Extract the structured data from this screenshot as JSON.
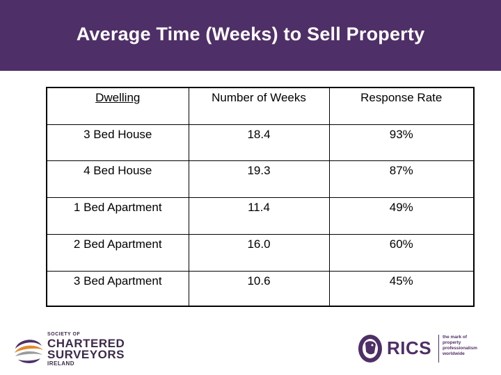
{
  "title": "Average Time (Weeks) to Sell Property",
  "table": {
    "headers": [
      "Dwelling",
      "Number of Weeks",
      "Response Rate"
    ],
    "rows": [
      [
        "3 Bed House",
        "18.4",
        "93%"
      ],
      [
        "4 Bed House",
        "19.3",
        "87%"
      ],
      [
        "1 Bed Apartment",
        "11.4",
        "49%"
      ],
      [
        "2 Bed Apartment",
        "16.0",
        "60%"
      ],
      [
        "3 Bed Apartment",
        "10.6",
        "45%"
      ]
    ]
  },
  "logos": {
    "scs": {
      "line1": "SOCIETY OF",
      "line2": "CHARTERED",
      "line3": "SURVEYORS",
      "line4": "IRELAND"
    },
    "rics": {
      "name": "RICS",
      "tagline": [
        "the mark of",
        "property",
        "professionalism",
        "worldwide"
      ]
    }
  },
  "colors": {
    "title_bar": "#4f2f67",
    "title_text": "#ffffff",
    "logo_purple": "#4f2f67"
  }
}
